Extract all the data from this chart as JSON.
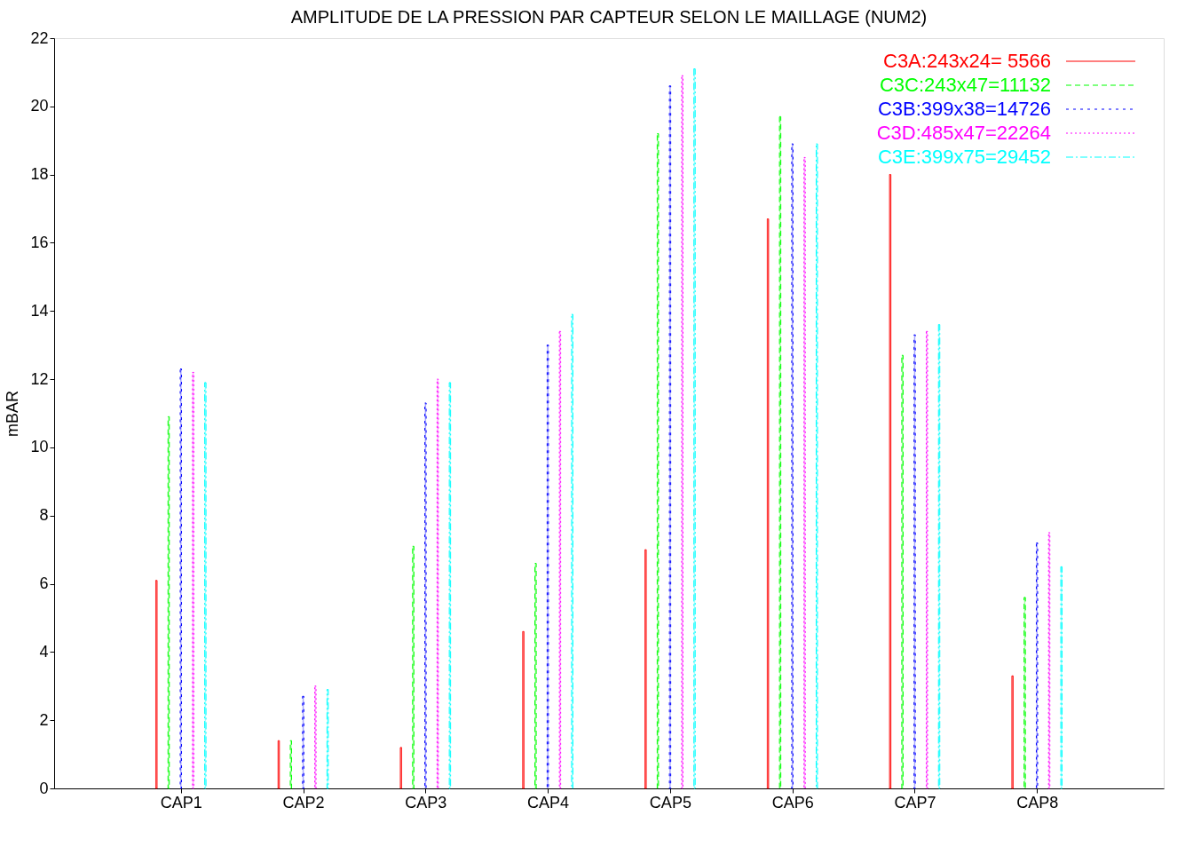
{
  "chart_data": {
    "type": "bar",
    "title": "AMPLITUDE DE LA PRESSION PAR CAPTEUR SELON LE MAILLAGE (NUM2)",
    "ylabel": "mBAR",
    "categories": [
      "CAP1",
      "CAP2",
      "CAP3",
      "CAP4",
      "CAP5",
      "CAP6",
      "CAP7",
      "CAP8"
    ],
    "series": [
      {
        "name": "C3A:243x24= 5566",
        "color": "#ff0000",
        "line_style": "solid",
        "values": [
          6.1,
          1.4,
          1.2,
          4.6,
          7.0,
          16.7,
          18.0,
          3.3
        ]
      },
      {
        "name": "C3C:243x47=11132",
        "color": "#00ff00",
        "line_style": "dashed",
        "values": [
          10.9,
          1.4,
          7.1,
          6.6,
          19.2,
          19.7,
          12.7,
          5.6
        ]
      },
      {
        "name": "C3B:399x38=14726",
        "color": "#0000ff",
        "line_style": "dashed",
        "values": [
          12.3,
          2.7,
          11.3,
          13.0,
          20.6,
          18.9,
          13.3,
          7.2
        ]
      },
      {
        "name": "C3D:485x47=22264",
        "color": "#ff00ff",
        "line_style": "dotted",
        "values": [
          12.2,
          3.0,
          12.0,
          13.4,
          20.9,
          18.5,
          13.4,
          7.5
        ]
      },
      {
        "name": "C3E:399x75=29452",
        "color": "#00ffff",
        "line_style": "dashed",
        "values": [
          11.9,
          2.9,
          11.9,
          13.9,
          21.1,
          18.9,
          13.6,
          6.5
        ]
      }
    ],
    "ylim": [
      0,
      22
    ],
    "yticks": [
      0,
      2,
      4,
      6,
      8,
      10,
      12,
      14,
      16,
      18,
      20,
      22
    ],
    "grid": false,
    "legend": "top right"
  }
}
